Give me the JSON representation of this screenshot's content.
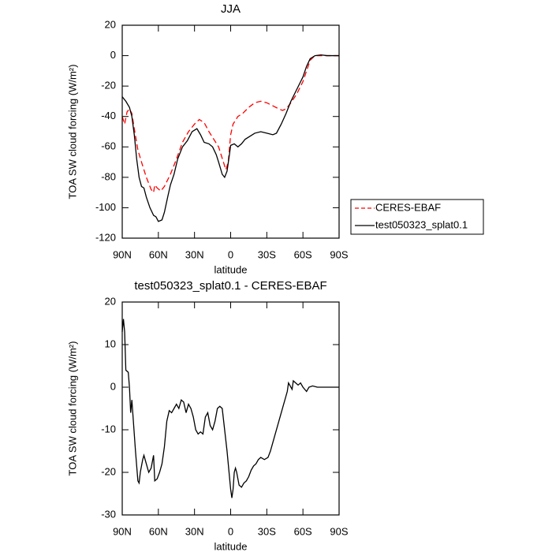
{
  "chart_data": [
    {
      "type": "line",
      "title": "JJA",
      "xlabel": "latitude",
      "ylabel": "TOA SW cloud forcing (W/m²)",
      "xlim": [
        90,
        -90
      ],
      "xticks": [
        {
          "value": 90,
          "label": "90N"
        },
        {
          "value": 60,
          "label": "60N"
        },
        {
          "value": 30,
          "label": "30N"
        },
        0,
        {
          "value": -30,
          "label": "30S"
        },
        {
          "value": -60,
          "label": "60S"
        },
        {
          "value": -90,
          "label": "90S"
        }
      ],
      "ylim": [
        -120,
        20
      ],
      "yticks": [
        20,
        0,
        -20,
        -40,
        -60,
        -80,
        -100,
        -120
      ],
      "legend": "right",
      "series": [
        {
          "name": "CERES-EBAF",
          "color": "#ff0000",
          "dash": true,
          "x": [
            90,
            88,
            86,
            84,
            82,
            80,
            77,
            74,
            70,
            66,
            64,
            63,
            61,
            58,
            55,
            50,
            45,
            40,
            35,
            30,
            26,
            22,
            18,
            14,
            10,
            6,
            4,
            2,
            0,
            -2,
            -6,
            -10,
            -15,
            -20,
            -25,
            -30,
            -35,
            -40,
            -43,
            -46,
            -50,
            -55,
            -60,
            -63,
            -66,
            -70,
            -75,
            -80,
            -85,
            -90
          ],
          "values": [
            -40,
            -45,
            -37,
            -35,
            -38,
            -48,
            -62,
            -70,
            -80,
            -88,
            -90,
            -85,
            -87,
            -89,
            -86,
            -78,
            -68,
            -57,
            -50,
            -45,
            -42,
            -44,
            -50,
            -55,
            -60,
            -70,
            -75,
            -70,
            -52,
            -45,
            -40,
            -38,
            -34,
            -31,
            -30,
            -31,
            -33,
            -35,
            -36,
            -35,
            -31,
            -25,
            -17,
            -10,
            -3,
            0,
            0,
            0,
            0,
            0
          ]
        },
        {
          "name": "test050323_splat0.1",
          "color": "#000000",
          "dash": false,
          "x": [
            90,
            87,
            84,
            82,
            80,
            78,
            76,
            74,
            72,
            70,
            67,
            64,
            62,
            60,
            57,
            55,
            52,
            50,
            47,
            44,
            40,
            36,
            32,
            28,
            25,
            22,
            18,
            15,
            12,
            10,
            7,
            5,
            3,
            1,
            0,
            -3,
            -6,
            -9,
            -12,
            -16,
            -20,
            -25,
            -30,
            -35,
            -38,
            -42,
            -46,
            -50,
            -55,
            -60,
            -63,
            -66,
            -70,
            -75,
            -80,
            -90
          ],
          "values": [
            -27,
            -30,
            -34,
            -40,
            -52,
            -68,
            -80,
            -86,
            -87,
            -93,
            -100,
            -105,
            -106,
            -109,
            -108,
            -103,
            -92,
            -85,
            -78,
            -68,
            -60,
            -56,
            -50,
            -48,
            -52,
            -57,
            -58,
            -60,
            -65,
            -70,
            -78,
            -80,
            -76,
            -65,
            -59,
            -58,
            -60,
            -58,
            -55,
            -53,
            -51,
            -50,
            -51,
            -52,
            -51,
            -45,
            -38,
            -30,
            -22,
            -14,
            -7,
            -2,
            0,
            0.5,
            0,
            0
          ]
        }
      ]
    },
    {
      "type": "line",
      "title": "test050323_splat0.1 - CERES-EBAF",
      "xlabel": "latitude",
      "ylabel": "TOA SW cloud forcing (W/m²)",
      "xlim": [
        90,
        -90
      ],
      "xticks": [
        {
          "value": 90,
          "label": "90N"
        },
        {
          "value": 60,
          "label": "60N"
        },
        {
          "value": 30,
          "label": "30N"
        },
        0,
        {
          "value": -30,
          "label": "30S"
        },
        {
          "value": -60,
          "label": "60S"
        },
        {
          "value": -90,
          "label": "90S"
        }
      ],
      "ylim": [
        -30,
        20
      ],
      "yticks": [
        20,
        10,
        0,
        -10,
        -20,
        -30
      ],
      "series": [
        {
          "name": null,
          "color": "#000000",
          "dash": false,
          "x": [
            90,
            89,
            88,
            87,
            85,
            84,
            83,
            82,
            81,
            79,
            77,
            76,
            75,
            73,
            72,
            70,
            68,
            66,
            64,
            63,
            61,
            59,
            57,
            55,
            53,
            51,
            49,
            47,
            45,
            43,
            41,
            39,
            37,
            35,
            33,
            31,
            29,
            27,
            25,
            23,
            21,
            19,
            17,
            15,
            13,
            11,
            9,
            7,
            5,
            3,
            1,
            0,
            -1,
            -2,
            -3,
            -4,
            -5,
            -7,
            -9,
            -11,
            -13,
            -15,
            -17,
            -19,
            -21,
            -23,
            -25,
            -28,
            -31,
            -33,
            -36,
            -40,
            -44,
            -47,
            -48,
            -50,
            -51,
            -52,
            -54,
            -56,
            -58,
            -60,
            -63,
            -65,
            -68,
            -72,
            -80,
            -90
          ],
          "values": [
            13,
            16,
            13,
            4,
            3.5,
            0,
            -6,
            -3,
            -7,
            -15,
            -22,
            -22.5,
            -20,
            -17,
            -16,
            -18,
            -20,
            -19,
            -16,
            -22,
            -21.5,
            -20,
            -18,
            -14,
            -8,
            -5.5,
            -6,
            -5,
            -4,
            -5,
            -3,
            -3.5,
            -6,
            -4,
            -5,
            -7,
            -10,
            -11,
            -10.5,
            -11,
            -7,
            -6,
            -9,
            -10,
            -8,
            -5,
            -4.5,
            -5,
            -10,
            -15,
            -21,
            -24,
            -26,
            -24,
            -20,
            -19,
            -20,
            -23,
            -23.5,
            -22.5,
            -22,
            -21,
            -19.5,
            -18.5,
            -18,
            -17,
            -16.5,
            -17,
            -16.5,
            -15,
            -12,
            -8,
            -4,
            -1,
            1,
            0,
            -0.5,
            1.5,
            1,
            0.5,
            1,
            0,
            -1,
            0,
            0.3,
            0,
            0,
            0
          ]
        }
      ]
    }
  ]
}
